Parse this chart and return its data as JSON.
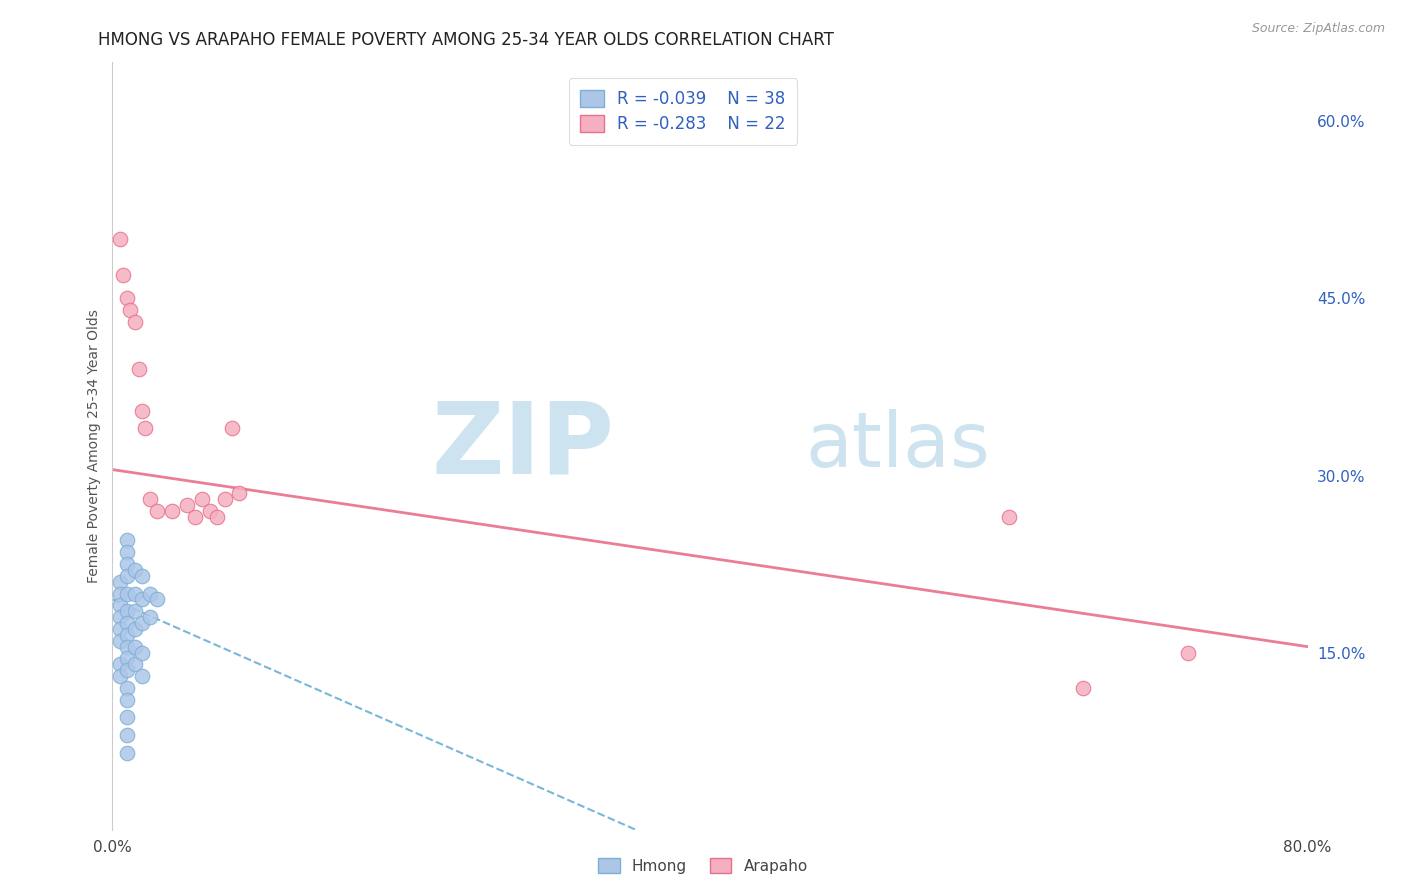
{
  "title": "HMONG VS ARAPAHO FEMALE POVERTY AMONG 25-34 YEAR OLDS CORRELATION CHART",
  "source": "Source: ZipAtlas.com",
  "ylabel": "Female Poverty Among 25-34 Year Olds",
  "xlim": [
    0.0,
    0.8
  ],
  "ylim": [
    0.0,
    0.65
  ],
  "xticks": [
    0.0,
    0.1,
    0.2,
    0.3,
    0.4,
    0.5,
    0.6,
    0.7,
    0.8
  ],
  "xticklabels": [
    "0.0%",
    "",
    "",
    "",
    "",
    "",
    "",
    "",
    "80.0%"
  ],
  "yticks_right": [
    0.15,
    0.3,
    0.45,
    0.6
  ],
  "ytick_labels_right": [
    "15.0%",
    "30.0%",
    "45.0%",
    "60.0%"
  ],
  "background_color": "#ffffff",
  "hmong_color": "#adc6e8",
  "hmong_edge_color": "#7bafd4",
  "arapaho_color": "#f5afc0",
  "arapaho_edge_color": "#e8708a",
  "hmong_R": "-0.039",
  "hmong_N": "38",
  "arapaho_R": "-0.283",
  "arapaho_N": "22",
  "legend_color": "#3060c0",
  "hmong_x": [
    0.005,
    0.005,
    0.005,
    0.005,
    0.005,
    0.005,
    0.005,
    0.005,
    0.01,
    0.01,
    0.01,
    0.01,
    0.01,
    0.01,
    0.01,
    0.01,
    0.01,
    0.01,
    0.01,
    0.01,
    0.01,
    0.01,
    0.01,
    0.01,
    0.015,
    0.015,
    0.015,
    0.015,
    0.015,
    0.015,
    0.02,
    0.02,
    0.02,
    0.02,
    0.02,
    0.025,
    0.025,
    0.03
  ],
  "hmong_y": [
    0.21,
    0.2,
    0.19,
    0.18,
    0.17,
    0.16,
    0.14,
    0.13,
    0.245,
    0.235,
    0.225,
    0.215,
    0.2,
    0.185,
    0.175,
    0.165,
    0.155,
    0.145,
    0.135,
    0.12,
    0.11,
    0.095,
    0.08,
    0.065,
    0.22,
    0.2,
    0.185,
    0.17,
    0.155,
    0.14,
    0.215,
    0.195,
    0.175,
    0.15,
    0.13,
    0.2,
    0.18,
    0.195
  ],
  "arapaho_x": [
    0.005,
    0.007,
    0.01,
    0.012,
    0.015,
    0.018,
    0.02,
    0.022,
    0.025,
    0.03,
    0.04,
    0.05,
    0.055,
    0.06,
    0.065,
    0.07,
    0.075,
    0.08,
    0.085,
    0.6,
    0.65,
    0.72
  ],
  "arapaho_y": [
    0.5,
    0.47,
    0.45,
    0.44,
    0.43,
    0.39,
    0.355,
    0.34,
    0.28,
    0.27,
    0.27,
    0.275,
    0.265,
    0.28,
    0.27,
    0.265,
    0.28,
    0.34,
    0.285,
    0.265,
    0.12,
    0.15
  ],
  "arapaho_trendline_x": [
    0.0,
    0.8
  ],
  "arapaho_trendline_y": [
    0.305,
    0.155
  ],
  "hmong_trendline_x": [
    0.0,
    0.35
  ],
  "hmong_trendline_y": [
    0.195,
    0.0
  ]
}
